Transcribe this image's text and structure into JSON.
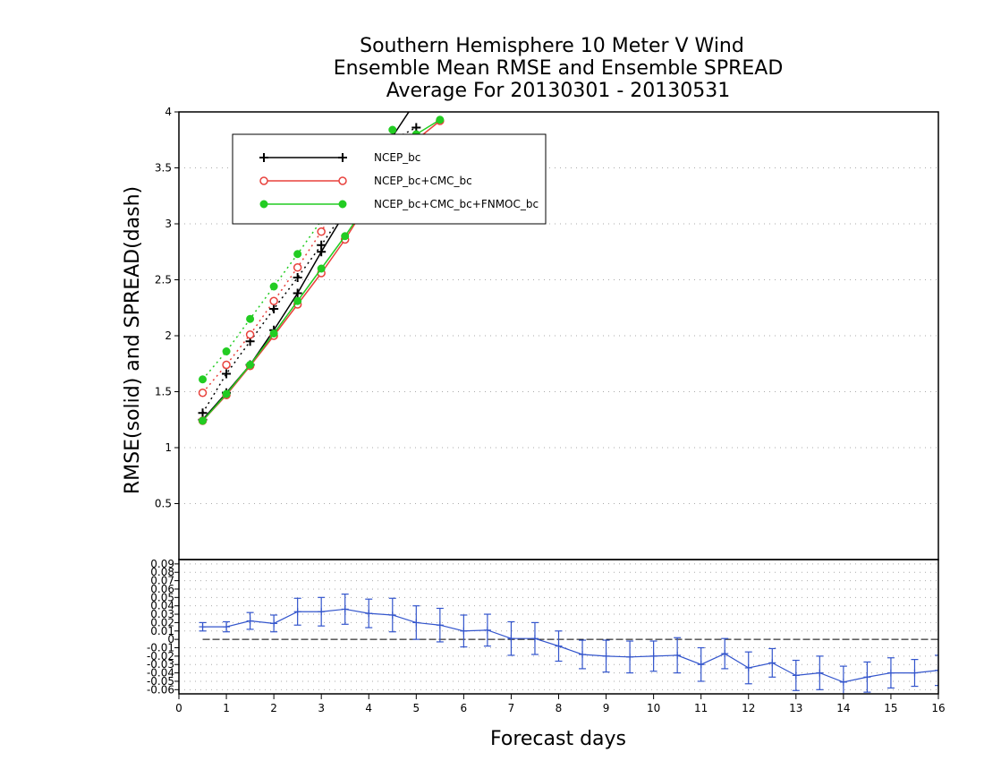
{
  "chart_data": [
    {
      "type": "line",
      "title_lines": [
        "Southern Hemisphere 10 Meter V Wind",
        "Ensemble Mean RMSE and Ensemble SPREAD",
        "Average For 20130301 - 20130531"
      ],
      "ylabel": "RMSE(solid) and SPREAD(dash)",
      "xlim": [
        0,
        16
      ],
      "ylim": [
        0,
        4
      ],
      "yticks": [
        "0.5",
        "1",
        "1.5",
        "2",
        "2.5",
        "3",
        "3.5",
        "4"
      ],
      "grid": true,
      "legend_position": "top-left",
      "series": [
        {
          "name": "NCEP_bc",
          "color": "#000000",
          "marker": "plus",
          "rmse": {
            "x": [
              0.5,
              1,
              1.5,
              2,
              2.5,
              3,
              3.5,
              4,
              4.5,
              5,
              5.5
            ],
            "y": [
              1.25,
              1.49,
              1.74,
              2.05,
              2.38,
              2.75,
              3.1,
              3.45,
              3.78,
              4.1,
              4.4
            ]
          },
          "spread": {
            "x": [
              0.5,
              1,
              1.5,
              2,
              2.5,
              3,
              3.5,
              4,
              4.5,
              5
            ],
            "y": [
              1.31,
              1.66,
              1.95,
              2.24,
              2.52,
              2.81,
              3.12,
              3.45,
              3.75,
              3.86
            ]
          }
        },
        {
          "name": "NCEP_bc+CMC_bc",
          "color": "#e8413c",
          "marker": "open-circle",
          "rmse": {
            "x": [
              0.5,
              1,
              1.5,
              2,
              2.5,
              3,
              3.5,
              4,
              4.5,
              5,
              5.5
            ],
            "y": [
              1.24,
              1.47,
              1.73,
              2.0,
              2.28,
              2.56,
              2.86,
              3.2,
              3.55,
              3.75,
              3.92
            ]
          },
          "spread": {
            "x": [
              0.5,
              1,
              1.5,
              2,
              2.5,
              3,
              3.5,
              4
            ],
            "y": [
              1.49,
              1.74,
              2.01,
              2.31,
              2.61,
              2.93,
              3.3,
              3.7
            ]
          }
        },
        {
          "name": "NCEP_bc+CMC_bc+FNMOC_bc",
          "color": "#22cc22",
          "marker": "filled-circle",
          "rmse": {
            "x": [
              0.5,
              1,
              1.5,
              2,
              2.5,
              3,
              3.5,
              4,
              4.5,
              5,
              5.5
            ],
            "y": [
              1.24,
              1.48,
              1.74,
              2.02,
              2.31,
              2.6,
              2.89,
              3.2,
              3.5,
              3.8,
              3.93
            ]
          },
          "spread": {
            "x": [
              0.5,
              1,
              1.5,
              2,
              2.5,
              3,
              3.5,
              4,
              4.5
            ],
            "y": [
              1.61,
              1.86,
              2.15,
              2.44,
              2.73,
              3.03,
              3.35,
              3.62,
              3.84
            ]
          }
        }
      ]
    },
    {
      "type": "line",
      "xlabel": "Forecast days",
      "xlim": [
        0,
        16
      ],
      "ylim": [
        -0.065,
        0.0952
      ],
      "xticks": [
        "0",
        "1",
        "2",
        "3",
        "4",
        "5",
        "6",
        "7",
        "8",
        "9",
        "10",
        "11",
        "12",
        "13",
        "14",
        "15",
        "16"
      ],
      "yticks": [
        "-0.06",
        "-0.05",
        "-0.04",
        "-0.03",
        "-0.02",
        "-0.01",
        "0",
        "0.01",
        "0.02",
        "0.03",
        "0.04",
        "0.05",
        "0.06",
        "0.07",
        "0.08",
        "0.09"
      ],
      "grid": true,
      "zero_line": true,
      "series": [
        {
          "color": "#3355cc",
          "marker": "plus",
          "error_bars": true,
          "x": [
            0.5,
            1,
            1.5,
            2,
            2.5,
            3,
            3.5,
            4,
            4.5,
            5,
            5.5,
            6,
            6.5,
            7,
            7.5,
            8,
            8.5,
            9,
            9.5,
            10,
            10.5,
            11,
            11.5,
            12,
            12.5,
            13,
            13.5,
            14,
            14.5,
            15,
            15.5,
            16
          ],
          "y": [
            0.015,
            0.015,
            0.022,
            0.019,
            0.033,
            0.033,
            0.036,
            0.031,
            0.029,
            0.02,
            0.017,
            0.01,
            0.011,
            0.001,
            0.001,
            -0.008,
            -0.018,
            -0.02,
            -0.021,
            -0.02,
            -0.019,
            -0.03,
            -0.017,
            -0.034,
            -0.028,
            -0.043,
            -0.04,
            -0.051,
            -0.045,
            -0.04,
            -0.04,
            -0.037
          ],
          "err": [
            0.005,
            0.006,
            0.01,
            0.01,
            0.016,
            0.017,
            0.018,
            0.017,
            0.02,
            0.02,
            0.02,
            0.019,
            0.019,
            0.02,
            0.019,
            0.018,
            0.017,
            0.019,
            0.019,
            0.018,
            0.021,
            0.02,
            0.018,
            0.019,
            0.017,
            0.018,
            0.02,
            0.019,
            0.018,
            0.018,
            0.016,
            0.018
          ]
        }
      ]
    }
  ]
}
